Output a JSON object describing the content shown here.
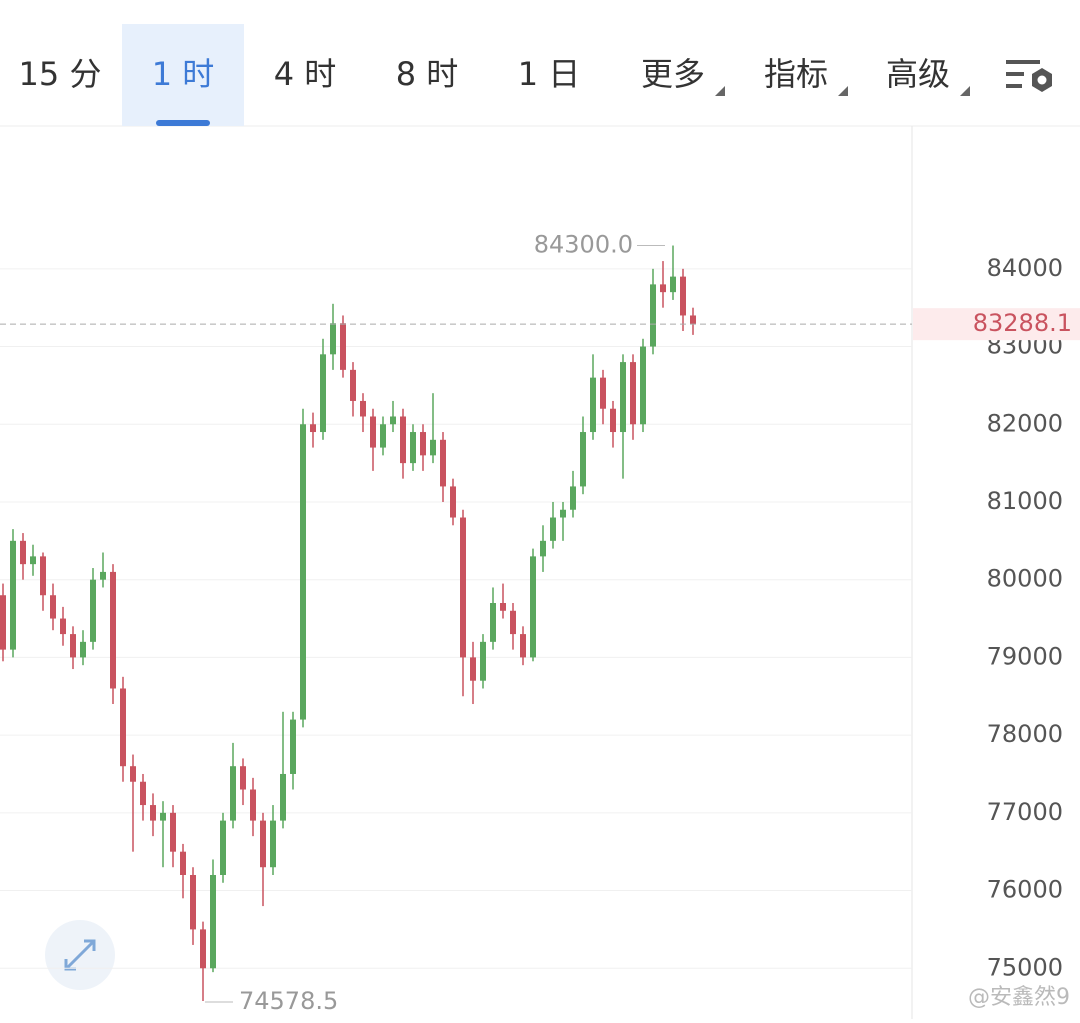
{
  "tabs": [
    "15 分",
    "1 时",
    "4 时",
    "8 时",
    "1 日",
    "更多",
    "指标",
    "高级"
  ],
  "active_tab": 1,
  "watermark": "@安鑫然9",
  "chart_data": {
    "type": "candlestick",
    "ylim": [
      74347,
      85838
    ],
    "yticks": [
      75000,
      76000,
      77000,
      78000,
      79000,
      80000,
      81000,
      82000,
      83000,
      84000
    ],
    "up_color": "#5aa75e",
    "down_color": "#c9535f",
    "high_label": "84300.0",
    "low_label": "74578.5",
    "last_price": 83288.1,
    "candles": [
      [
        79800,
        79950,
        78950,
        79100
      ],
      [
        79100,
        80650,
        79000,
        80500
      ],
      [
        80500,
        80600,
        80000,
        80200
      ],
      [
        80200,
        80450,
        80050,
        80300
      ],
      [
        80300,
        80350,
        79600,
        79800
      ],
      [
        79800,
        79950,
        79350,
        79500
      ],
      [
        79500,
        79650,
        79150,
        79300
      ],
      [
        79300,
        79400,
        78850,
        79000
      ],
      [
        79000,
        79350,
        78900,
        79200
      ],
      [
        79200,
        80150,
        79100,
        80000
      ],
      [
        80000,
        80350,
        79900,
        80100
      ],
      [
        80100,
        80200,
        78400,
        78600
      ],
      [
        78600,
        78750,
        77400,
        77600
      ],
      [
        77600,
        77750,
        76500,
        77400
      ],
      [
        77400,
        77500,
        76900,
        77100
      ],
      [
        77100,
        77250,
        76700,
        76900
      ],
      [
        76900,
        77150,
        76300,
        77000
      ],
      [
        77000,
        77100,
        76300,
        76500
      ],
      [
        76500,
        76600,
        75900,
        76200
      ],
      [
        76200,
        76300,
        75300,
        75500
      ],
      [
        75500,
        75600,
        74578.5,
        75000
      ],
      [
        75000,
        76400,
        74950,
        76200
      ],
      [
        76200,
        77000,
        76100,
        76900
      ],
      [
        76900,
        77900,
        76800,
        77600
      ],
      [
        77600,
        77700,
        77100,
        77300
      ],
      [
        77300,
        77450,
        76700,
        76900
      ],
      [
        76900,
        77000,
        75800,
        76300
      ],
      [
        76300,
        77100,
        76200,
        76900
      ],
      [
        76900,
        78300,
        76800,
        77500
      ],
      [
        77500,
        78300,
        77300,
        78200
      ],
      [
        78200,
        82200,
        78100,
        82000
      ],
      [
        82000,
        82150,
        81700,
        81900
      ],
      [
        81900,
        83100,
        81800,
        82900
      ],
      [
        82900,
        83550,
        82700,
        83300
      ],
      [
        83300,
        83400,
        82600,
        82700
      ],
      [
        82700,
        82800,
        82100,
        82300
      ],
      [
        82300,
        82400,
        81900,
        82100
      ],
      [
        82100,
        82200,
        81400,
        81700
      ],
      [
        81700,
        82100,
        81600,
        82000
      ],
      [
        82000,
        82300,
        81900,
        82100
      ],
      [
        82100,
        82200,
        81300,
        81500
      ],
      [
        81500,
        82000,
        81400,
        81900
      ],
      [
        81900,
        82000,
        81400,
        81600
      ],
      [
        81600,
        82400,
        81500,
        81800
      ],
      [
        81800,
        81900,
        81000,
        81200
      ],
      [
        81200,
        81300,
        80700,
        80800
      ],
      [
        80800,
        80900,
        78500,
        79000
      ],
      [
        79000,
        79200,
        78400,
        78700
      ],
      [
        78700,
        79300,
        78600,
        79200
      ],
      [
        79200,
        79900,
        79100,
        79700
      ],
      [
        79700,
        79950,
        79500,
        79600
      ],
      [
        79600,
        79700,
        79100,
        79300
      ],
      [
        79300,
        79400,
        78900,
        79000
      ],
      [
        79000,
        80400,
        78950,
        80300
      ],
      [
        80300,
        80700,
        80100,
        80500
      ],
      [
        80500,
        81000,
        80400,
        80800
      ],
      [
        80800,
        81000,
        80500,
        80900
      ],
      [
        80900,
        81400,
        80800,
        81200
      ],
      [
        81200,
        82100,
        81100,
        81900
      ],
      [
        81900,
        82900,
        81800,
        82600
      ],
      [
        82600,
        82700,
        82000,
        82200
      ],
      [
        82200,
        82300,
        81700,
        81900
      ],
      [
        81900,
        82900,
        81300,
        82800
      ],
      [
        82800,
        82900,
        81800,
        82000
      ],
      [
        82000,
        83100,
        81900,
        83000
      ],
      [
        83000,
        84000,
        82900,
        83800
      ],
      [
        83800,
        84100,
        83500,
        83700
      ],
      [
        83700,
        84300,
        83600,
        83900
      ],
      [
        83900,
        84000,
        83200,
        83400
      ],
      [
        83400,
        83500,
        83150,
        83288.1
      ]
    ]
  }
}
